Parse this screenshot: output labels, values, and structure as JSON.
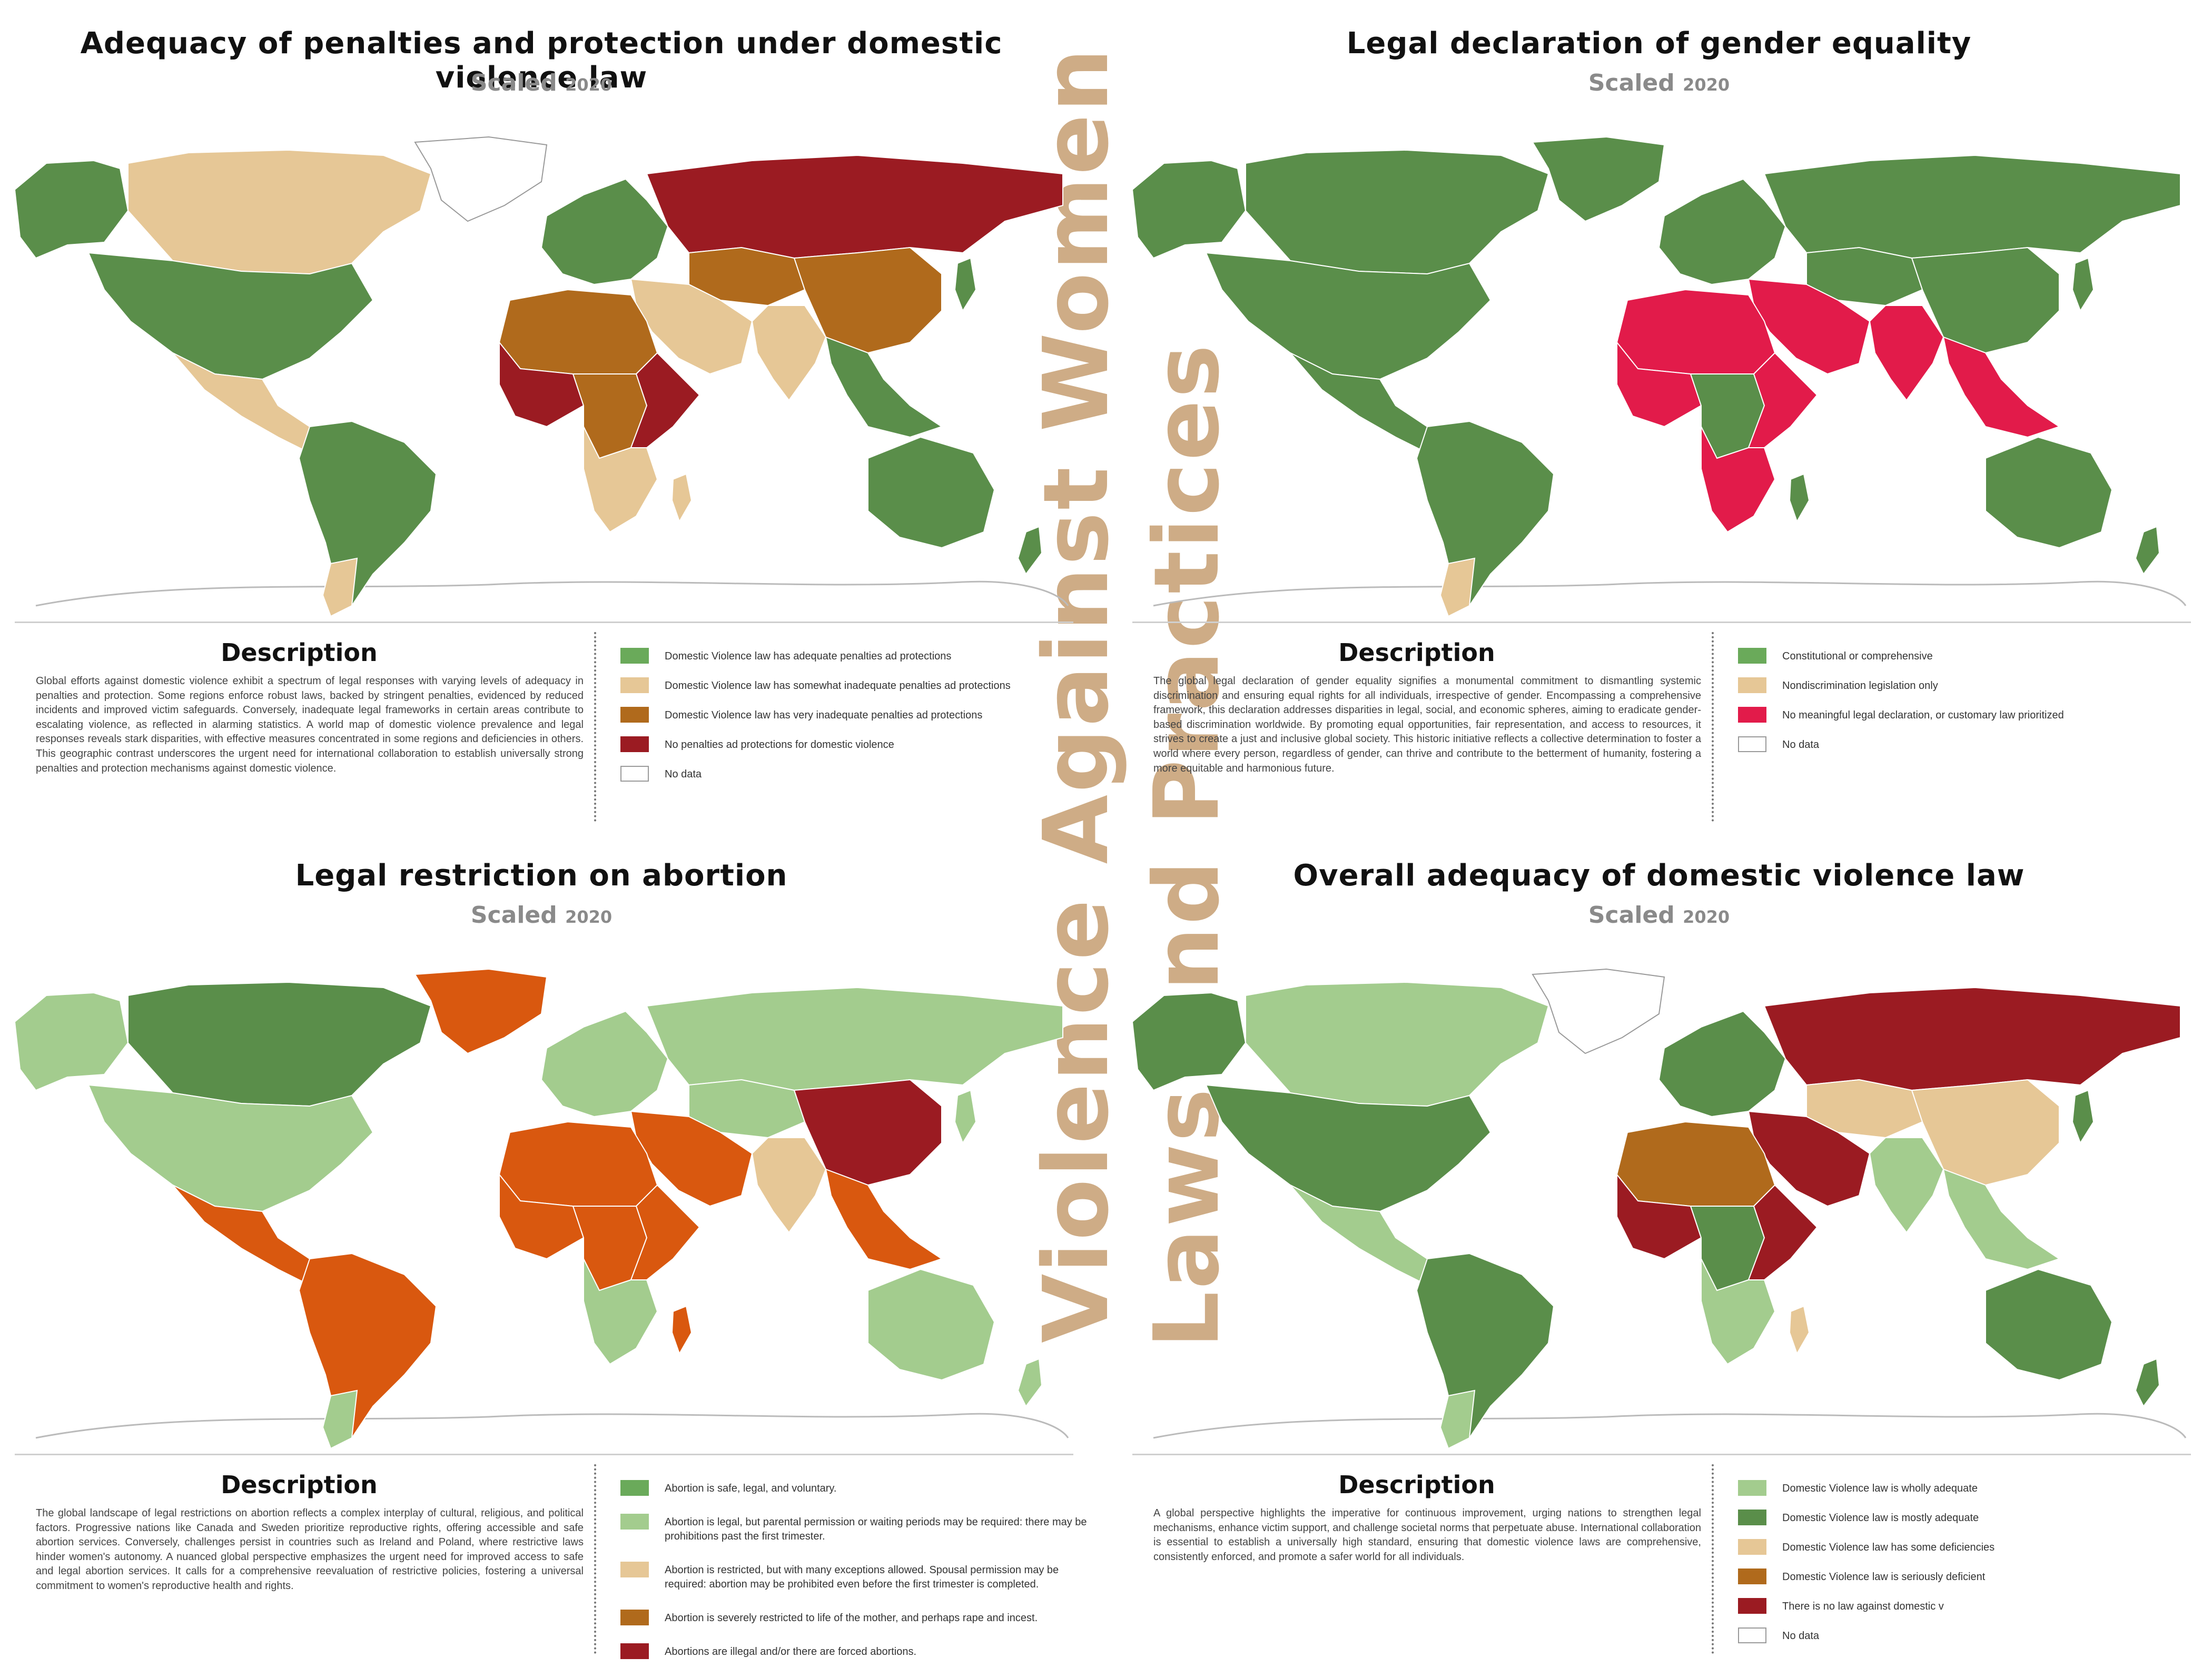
{
  "vertical_titles": [
    "Violence Against Women",
    "Laws and Practices"
  ],
  "panels": [
    {
      "title": "Adequacy of penalties and protection under domestic violence law",
      "subtitle": "Scaled",
      "year": "2020",
      "description_heading": "Description",
      "description": "Global efforts against domestic violence exhibit a spectrum of legal responses with varying levels of adequacy in penalties and protection. Some regions enforce robust laws, backed by stringent penalties, evidenced by reduced incidents and improved victim safeguards. Conversely, inadequate legal frameworks in certain areas contribute to escalating violence, as reflected in alarming statistics. A world map of domestic violence prevalence and legal responses reveals stark disparities, with effective measures concentrated in some regions and deficiencies in others. This geographic contrast underscores the urgent need for international collaboration to establish universally strong penalties and protection mechanisms against domestic violence.",
      "legend": [
        {
          "label": "Domestic Violence law has adequate penalties ad protections",
          "color": "#6aaa5a"
        },
        {
          "label": "Domestic Violence law has somewhat inadequate penalties ad protections",
          "color": "#e6c796"
        },
        {
          "label": "Domestic Violence law has very inadequate penalties ad protections",
          "color": "#b06a1c"
        },
        {
          "label": "No penalties ad protections for domestic violence",
          "color": "#9b1b22"
        },
        {
          "label": "No data",
          "color": "#ffffff"
        }
      ]
    },
    {
      "title": "Legal declaration of gender equality",
      "subtitle": "Scaled",
      "year": "2020",
      "description_heading": "Description",
      "description": "The global legal declaration of gender equality signifies a monumental commitment to dismantling systemic discrimination and ensuring equal rights for all individuals, irrespective of gender. Encompassing a comprehensive framework, this declaration addresses disparities in legal, social, and economic spheres, aiming to eradicate gender-based discrimination worldwide. By promoting equal opportunities, fair representation, and access to resources, it strives to create a just and inclusive global society. This historic initiative reflects a collective determination to foster a world where every person, regardless of gender, can thrive and contribute to the betterment of humanity, fostering a more equitable and harmonious future.",
      "legend": [
        {
          "label": "Constitutional or comprehensive",
          "color": "#6aaa5a"
        },
        {
          "label": "Nondiscrimination legislation only",
          "color": "#e6c796"
        },
        {
          "label": "No meaningful legal declaration, or customary law prioritized",
          "color": "#e21b4a"
        },
        {
          "label": "No data",
          "color": "#ffffff"
        }
      ]
    },
    {
      "title": "Legal restriction on abortion",
      "subtitle": "Scaled",
      "year": "2020",
      "description_heading": "Description",
      "description": "The global landscape of legal restrictions on abortion reflects a complex interplay of cultural, religious, and political factors. Progressive nations like Canada and Sweden prioritize reproductive rights, offering accessible and safe abortion services. Conversely, challenges persist in countries such as Ireland and Poland, where restrictive laws hinder women's autonomy. A nuanced global perspective emphasizes the urgent need for improved access to safe and legal abortion services. It calls for a comprehensive reevaluation of restrictive policies, fostering a universal commitment to women's reproductive health and rights.",
      "legend": [
        {
          "label": "Abortion is safe, legal, and voluntary.",
          "color": "#6aaa5a"
        },
        {
          "label": "Abortion is legal, but parental permission or waiting periods may be required: there may be prohibitions past the first trimester.",
          "color": "#a3cc8e"
        },
        {
          "label": "Abortion is restricted, but with many exceptions allowed. Spousal permission may be required: abortion may be prohibited even before the first trimester is completed.",
          "color": "#e6c796"
        },
        {
          "label": "Abortion is severely restricted to life of the mother, and perhaps rape and incest.",
          "color": "#b06a1c"
        },
        {
          "label": "Abortions are illegal and/or there are forced abortions.",
          "color": "#9b1b22"
        }
      ]
    },
    {
      "title": "Overall adequacy of domestic violence law",
      "subtitle": "Scaled",
      "year": "2020",
      "description_heading": "Description",
      "description": "A global perspective highlights the imperative for continuous improvement, urging nations to strengthen legal mechanisms, enhance victim support, and challenge societal norms that perpetuate abuse. International collaboration is essential to establish a universally high standard, ensuring that domestic violence laws are comprehensive, consistently enforced, and promote a safer world for all individuals.",
      "legend": [
        {
          "label": "Domestic Violence law is wholly adequate",
          "color": "#a3cc8e"
        },
        {
          "label": "Domestic Violence law is mostly adequate",
          "color": "#5a8e4a"
        },
        {
          "label": "Domestic Violence law has some deficiencies",
          "color": "#e6c796"
        },
        {
          "label": "Domestic Violence law is seriously deficient",
          "color": "#b06a1c"
        },
        {
          "label": "There is no law against domestic v",
          "color": "#9b1b22"
        },
        {
          "label": "No data",
          "color": "#ffffff"
        }
      ]
    }
  ],
  "map_regions": [
    {
      "_panel": "penalties",
      "colors": {
        "north_america": "#5a8e4a",
        "canada": "#e6c796",
        "greenland": "#ffffff",
        "central_america": "#e6c796",
        "south_america": "#5a8e4a",
        "patagonia": "#e6c796",
        "europe": "#5a8e4a",
        "russia": "#9b1b22",
        "central_asia": "#b06a1c",
        "middle_east": "#e6c796",
        "north_africa": "#b06a1c",
        "west_africa": "#9b1b22",
        "central_africa": "#b06a1c",
        "east_africa": "#9b1b22",
        "southern_africa": "#e6c796",
        "south_asia": "#e6c796",
        "southeast_asia": "#5a8e4a",
        "east_asia": "#b06a1c",
        "japan": "#5a8e4a",
        "australia": "#5a8e4a",
        "new_zealand": "#5a8e4a",
        "madagascar": "#e6c796",
        "alaska": "#5a8e4a"
      }
    },
    {
      "_panel": "equality",
      "colors": {
        "north_america": "#5a8e4a",
        "canada": "#5a8e4a",
        "greenland": "#5a8e4a",
        "central_america": "#5a8e4a",
        "south_america": "#5a8e4a",
        "patagonia": "#e6c796",
        "europe": "#5a8e4a",
        "russia": "#5a8e4a",
        "central_asia": "#5a8e4a",
        "middle_east": "#e21b4a",
        "north_africa": "#e21b4a",
        "west_africa": "#e21b4a",
        "central_africa": "#5a8e4a",
        "east_africa": "#e21b4a",
        "southern_africa": "#e21b4a",
        "south_asia": "#e21b4a",
        "southeast_asia": "#e21b4a",
        "east_asia": "#5a8e4a",
        "japan": "#5a8e4a",
        "australia": "#5a8e4a",
        "new_zealand": "#5a8e4a",
        "madagascar": "#5a8e4a",
        "alaska": "#5a8e4a"
      }
    },
    {
      "_panel": "abortion",
      "colors": {
        "north_america": "#a3cc8e",
        "canada": "#5a8e4a",
        "greenland": "#d9580f",
        "central_america": "#d9580f",
        "south_america": "#d9580f",
        "patagonia": "#a3cc8e",
        "europe": "#a3cc8e",
        "russia": "#a3cc8e",
        "central_asia": "#a3cc8e",
        "middle_east": "#d9580f",
        "north_africa": "#d9580f",
        "west_africa": "#d9580f",
        "central_africa": "#d9580f",
        "east_africa": "#d9580f",
        "southern_africa": "#a3cc8e",
        "south_asia": "#e6c796",
        "southeast_asia": "#d9580f",
        "east_asia": "#9b1b22",
        "japan": "#a3cc8e",
        "australia": "#a3cc8e",
        "new_zealand": "#a3cc8e",
        "madagascar": "#d9580f",
        "alaska": "#a3cc8e"
      }
    },
    {
      "_panel": "overall",
      "colors": {
        "north_america": "#5a8e4a",
        "canada": "#a3cc8e",
        "greenland": "#ffffff",
        "central_america": "#a3cc8e",
        "south_america": "#5a8e4a",
        "patagonia": "#a3cc8e",
        "europe": "#5a8e4a",
        "russia": "#9b1b22",
        "central_asia": "#e6c796",
        "middle_east": "#9b1b22",
        "north_africa": "#b06a1c",
        "west_africa": "#9b1b22",
        "central_africa": "#5a8e4a",
        "east_africa": "#9b1b22",
        "southern_africa": "#a3cc8e",
        "south_asia": "#a3cc8e",
        "southeast_asia": "#a3cc8e",
        "east_asia": "#e6c796",
        "japan": "#5a8e4a",
        "australia": "#5a8e4a",
        "new_zealand": "#5a8e4a",
        "madagascar": "#e6c796",
        "alaska": "#5a8e4a"
      }
    }
  ]
}
